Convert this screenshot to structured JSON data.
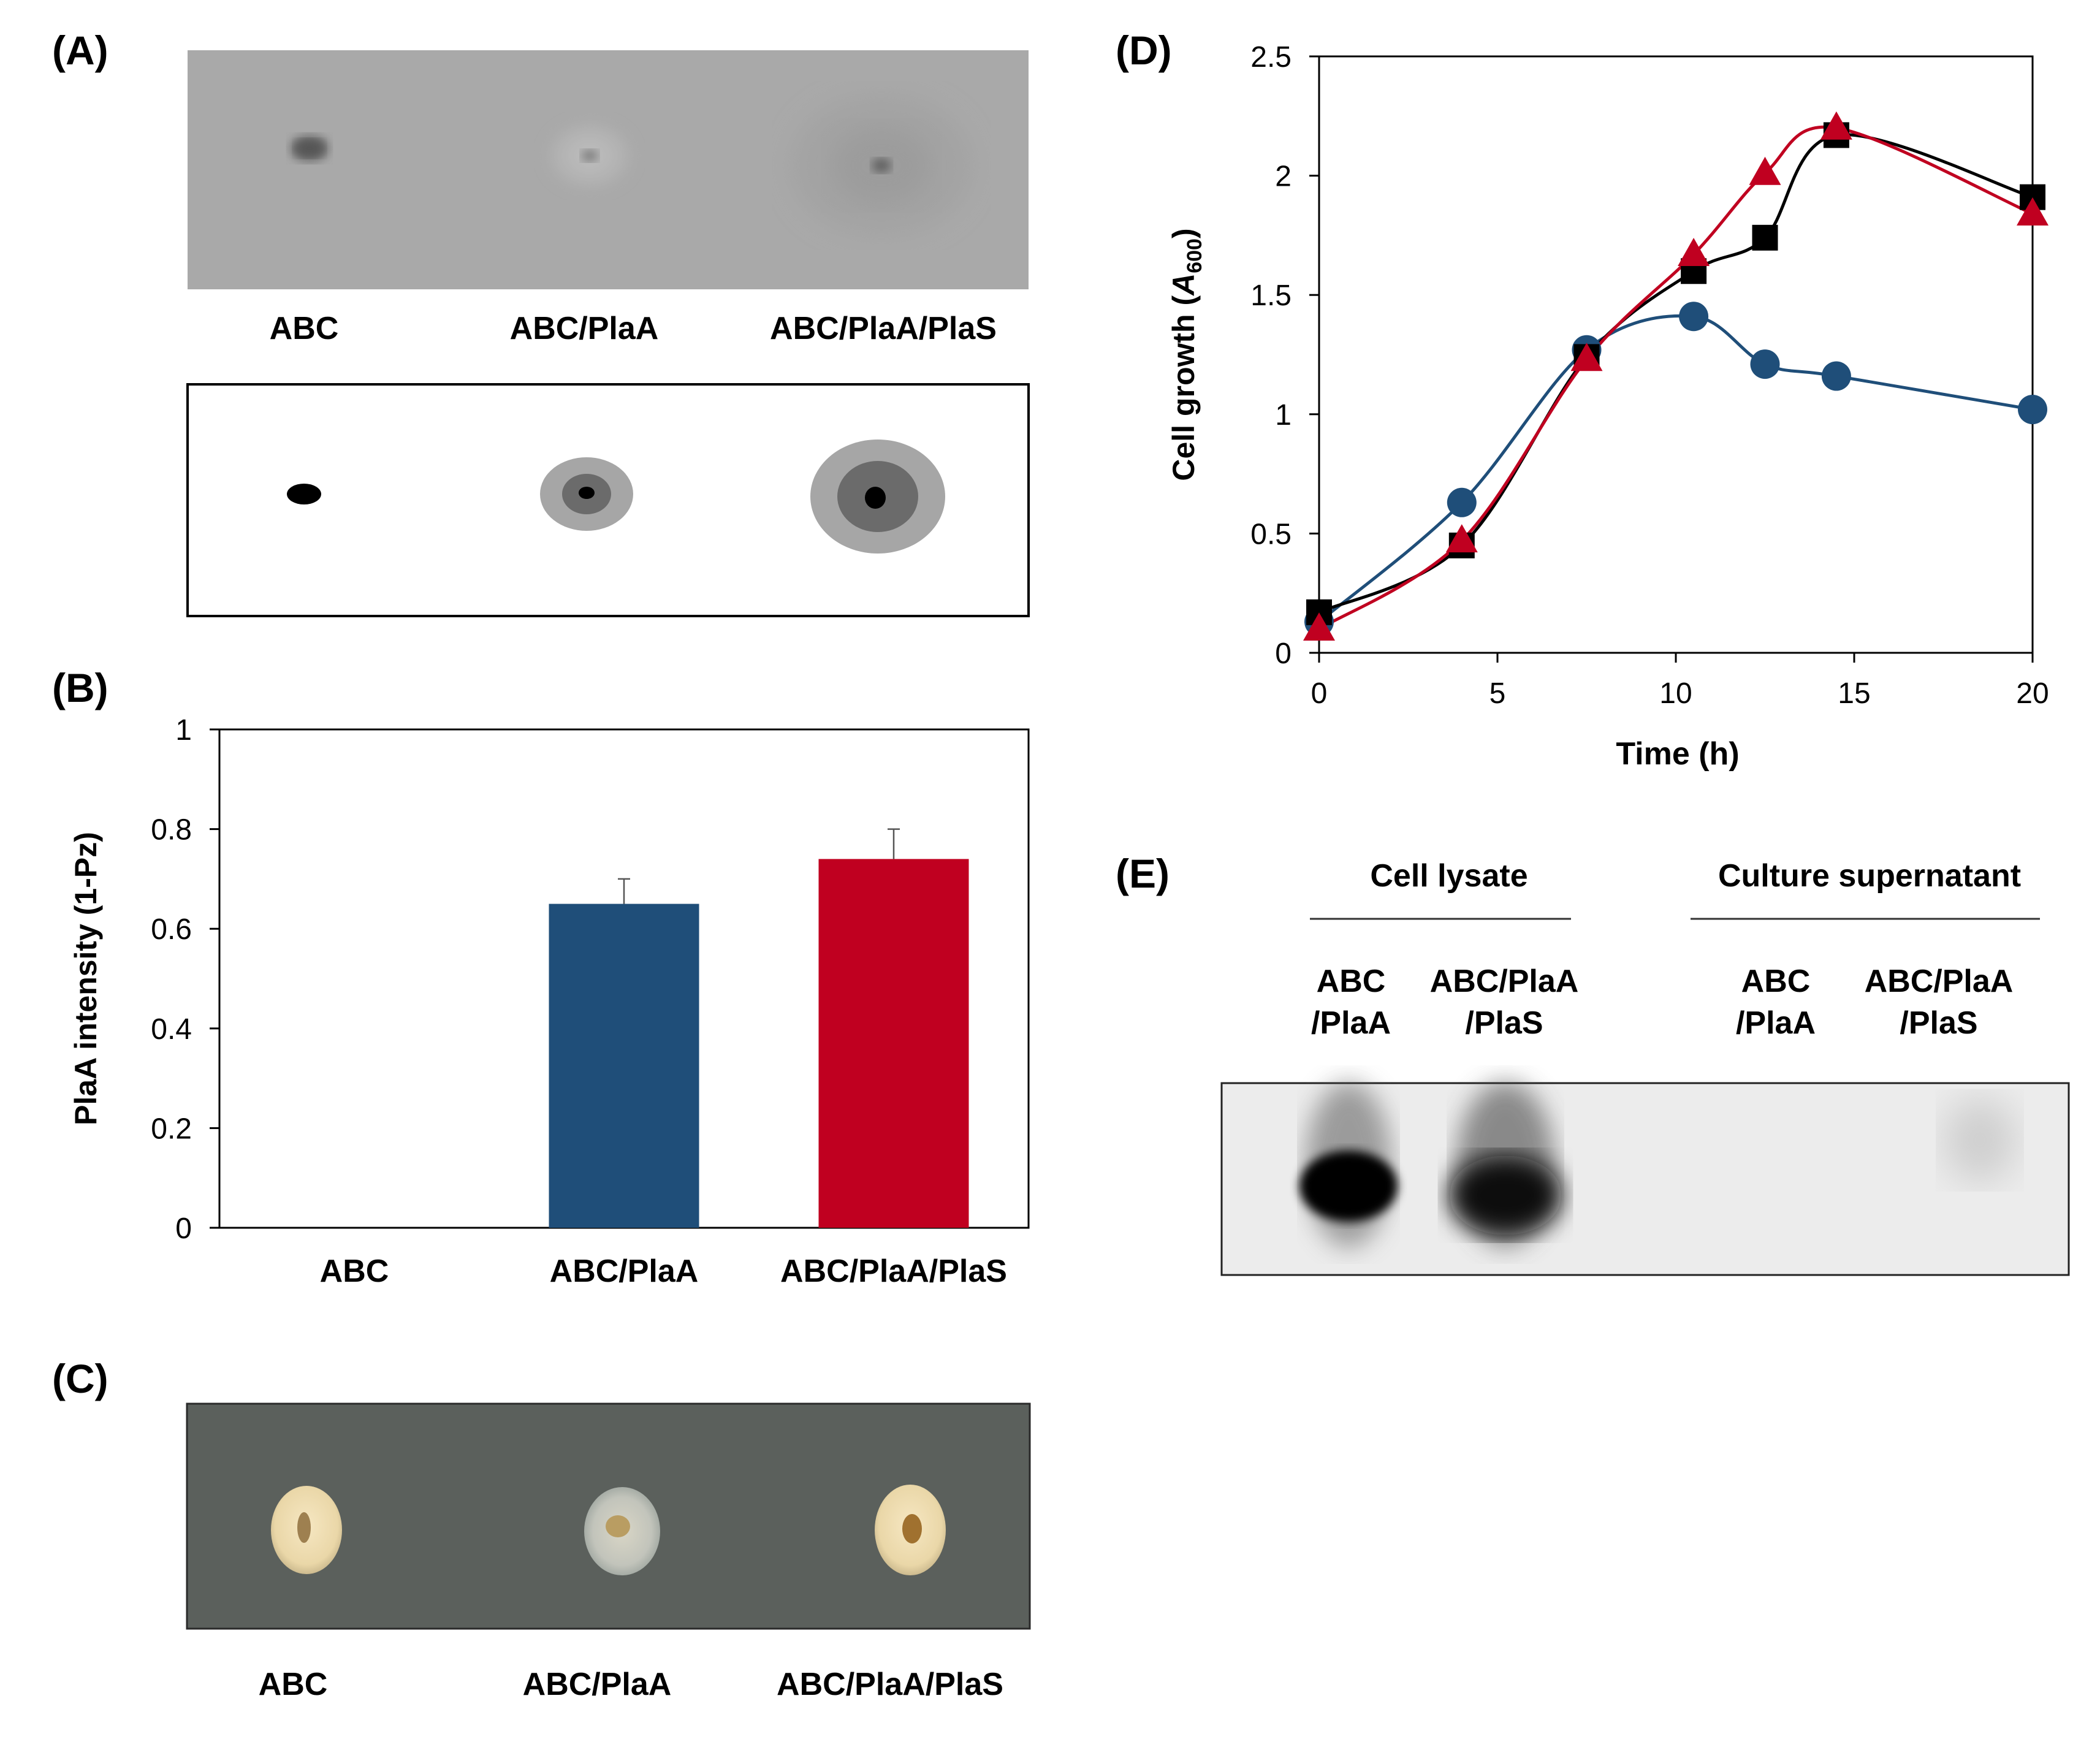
{
  "panels": {
    "a": {
      "label": "(A)",
      "strains": [
        "ABC",
        "ABC/PlaA",
        "ABC/PlaA/PlaS"
      ]
    },
    "b": {
      "label": "(B)"
    },
    "c": {
      "label": "(C)",
      "strains": [
        "ABC",
        "ABC/PlaA",
        "ABC/PlaA/PlaS"
      ]
    },
    "d": {
      "label": "(D)"
    },
    "e": {
      "label": "(E)",
      "group_cell_lysate": "Cell lysate",
      "group_supernatant": "Culture supernatant",
      "lanes": [
        {
          "line1": "ABC",
          "line2": "/PlaA"
        },
        {
          "line1": "ABC/PlaA",
          "line2": "/PlaS"
        },
        {
          "line1": "ABC",
          "line2": "/PlaA"
        },
        {
          "line1": "ABC/PlaA",
          "line2": "/PlaS"
        }
      ]
    }
  },
  "chart_data": [
    {
      "type": "bar",
      "panel": "B",
      "categories": [
        "ABC",
        "ABC/PlaA",
        "ABC/PlaA/PlaS"
      ],
      "values": [
        0,
        0.65,
        0.74
      ],
      "errors": [
        0,
        0.05,
        0.06
      ],
      "colors": [
        "#1f4e79",
        "#1f4e79",
        "#c00020"
      ],
      "ylabel": "PlaA intensity (1-Pz)",
      "ylim": [
        0,
        1
      ],
      "yticks": [
        "0",
        "0.2",
        "0.4",
        "0.6",
        "0.8",
        "1"
      ],
      "grid": false
    },
    {
      "type": "line",
      "panel": "D",
      "xlabel": "Time (h)",
      "ylabel_main": "Cell growth (",
      "ylabel_italic": "A",
      "ylabel_sub": "600",
      "ylabel_close": ")",
      "xlim": [
        0,
        20
      ],
      "ylim": [
        0,
        2.5
      ],
      "xticks": [
        "0",
        "5",
        "10",
        "15",
        "20"
      ],
      "yticks": [
        "0",
        "0.5",
        "1",
        "1.5",
        "2",
        "2.5"
      ],
      "grid": false,
      "series": [
        {
          "color": "#1f4e79",
          "marker": "circle",
          "x": [
            0,
            4,
            7.5,
            10.5,
            12.5,
            14.5,
            20
          ],
          "y": [
            0.13,
            0.63,
            1.27,
            1.41,
            1.21,
            1.16,
            1.02
          ]
        },
        {
          "color": "#000000",
          "marker": "square",
          "x": [
            0,
            4,
            7.5,
            10.5,
            12.5,
            14.5,
            20
          ],
          "y": [
            0.17,
            0.45,
            1.24,
            1.6,
            1.74,
            2.17,
            1.91
          ]
        },
        {
          "color": "#c00020",
          "marker": "triangle",
          "x": [
            0,
            4,
            7.5,
            10.5,
            12.5,
            14.5,
            20
          ],
          "y": [
            0.1,
            0.47,
            1.23,
            1.67,
            2.01,
            2.2,
            1.84
          ]
        }
      ]
    }
  ]
}
